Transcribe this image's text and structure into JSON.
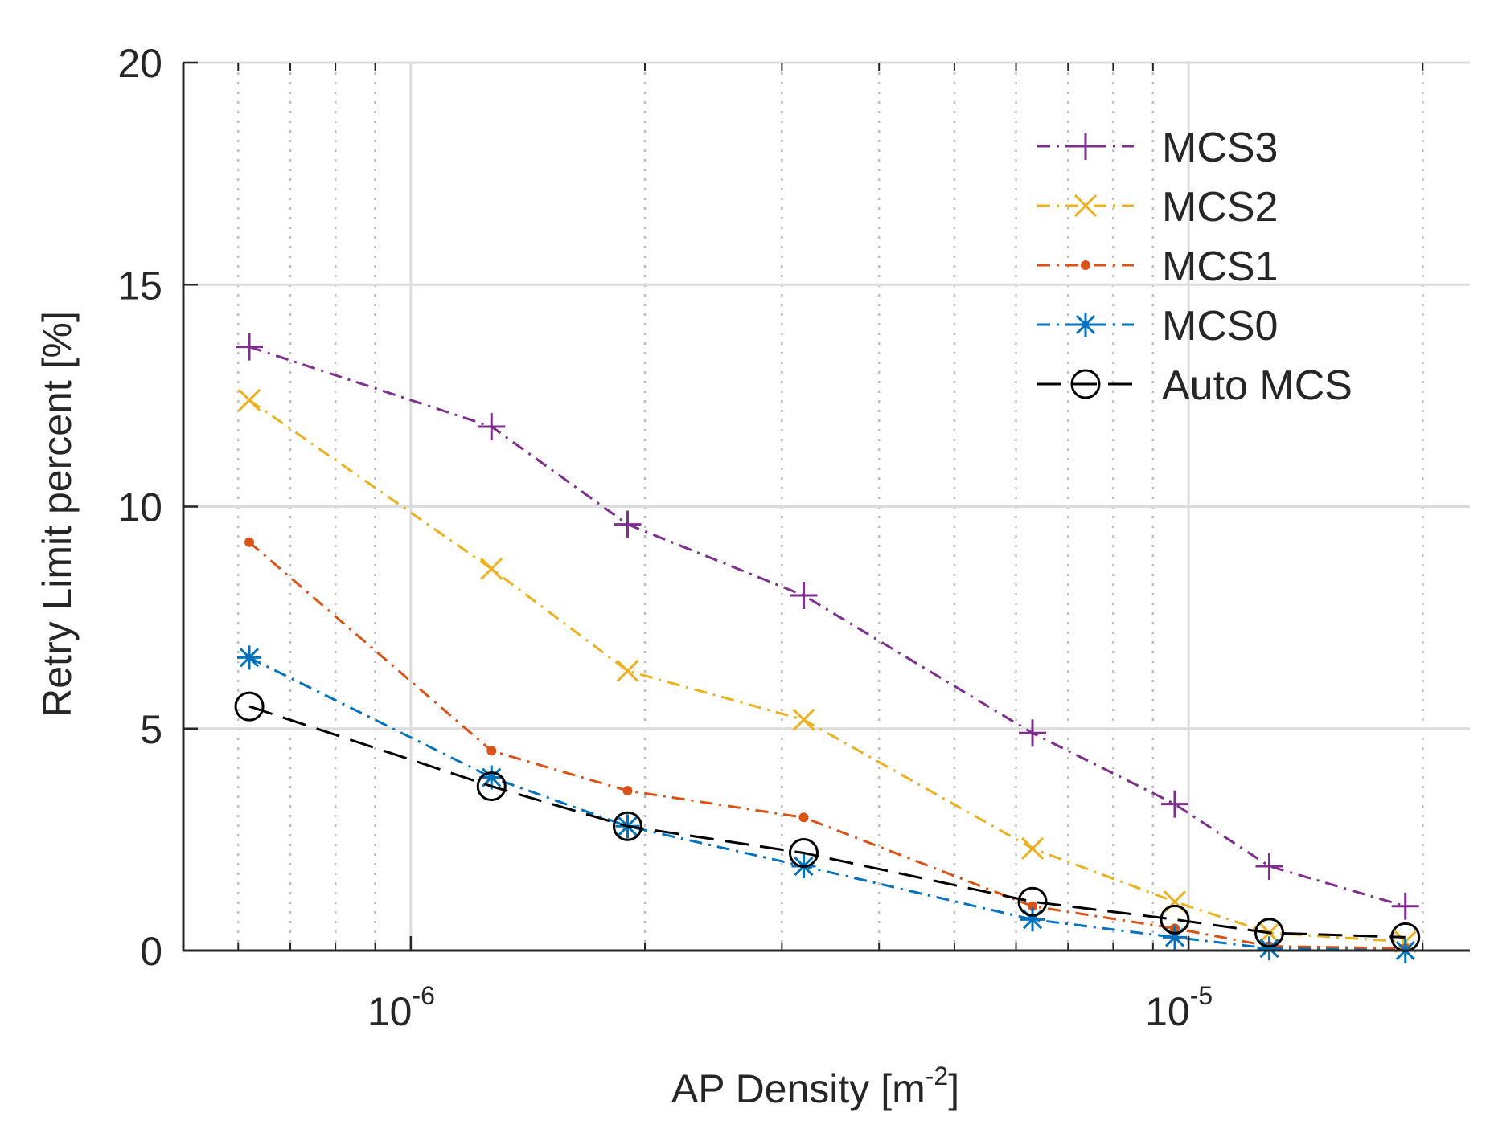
{
  "chart_data": {
    "type": "line",
    "title": "",
    "xlabel": {
      "prefix": "AP Density [m",
      "exponent": "-2",
      "suffix": "]"
    },
    "ylabel": "Retry Limit percent [%]",
    "xscale": "log",
    "xlim": [
      5.1e-07,
      2.3e-05
    ],
    "ylim": [
      0,
      20
    ],
    "yticks": [
      0,
      5,
      10,
      15,
      20
    ],
    "xticks": [
      {
        "value": 1e-06,
        "base": "10",
        "exponent": "-6"
      },
      {
        "value": 1e-05,
        "base": "10",
        "exponent": "-5"
      }
    ],
    "grid": true,
    "legend_position": "top-right",
    "x": [
      6.2e-07,
      1.27e-06,
      1.9e-06,
      3.2e-06,
      6.3e-06,
      9.6e-06,
      1.27e-05,
      1.9e-05
    ],
    "series": [
      {
        "name": "MCS3",
        "color": "#7E2F8E",
        "marker": "plus",
        "dash": "dashdot",
        "values": [
          13.6,
          11.8,
          9.6,
          8.0,
          4.9,
          3.3,
          1.9,
          1.0
        ]
      },
      {
        "name": "MCS2",
        "color": "#EDB120",
        "marker": "x",
        "dash": "dashdot",
        "values": [
          12.4,
          8.6,
          6.3,
          5.2,
          2.3,
          1.1,
          0.4,
          0.2
        ]
      },
      {
        "name": "MCS1",
        "color": "#D95319",
        "marker": "dot",
        "dash": "dashdot",
        "values": [
          9.2,
          4.5,
          3.6,
          3.0,
          1.0,
          0.5,
          0.1,
          0.05
        ]
      },
      {
        "name": "MCS0",
        "color": "#0072BD",
        "marker": "asterisk",
        "dash": "dashdot",
        "values": [
          6.6,
          3.9,
          2.8,
          1.9,
          0.7,
          0.3,
          0.05,
          0.0
        ]
      },
      {
        "name": "Auto MCS",
        "color": "#000000",
        "marker": "circle",
        "dash": "dash",
        "values": [
          5.5,
          3.7,
          2.8,
          2.2,
          1.1,
          0.7,
          0.4,
          0.3
        ]
      }
    ]
  }
}
